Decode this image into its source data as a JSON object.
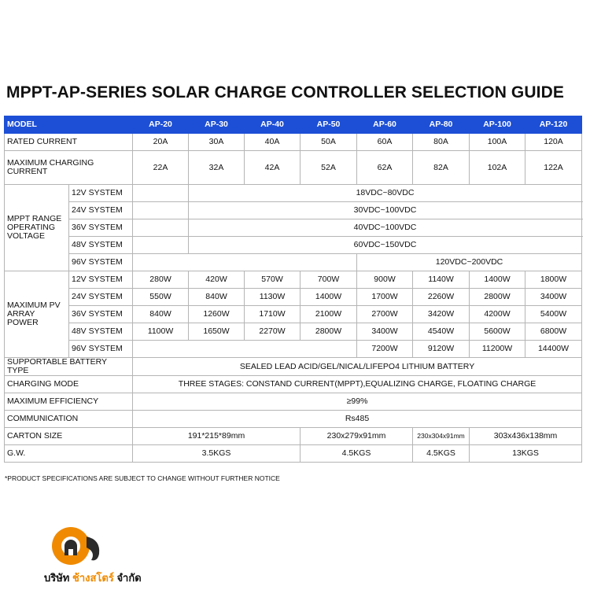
{
  "title": "MPPT-AP-SERIES SOLAR CHARGE CONTROLLER SELECTION GUIDE",
  "table": {
    "header": [
      "MODEL",
      "AP-20",
      "AP-30",
      "AP-40",
      "AP-50",
      "AP-60",
      "AP-80",
      "AP-100",
      "AP-120"
    ],
    "rated_current": [
      "RATED CURRENT",
      "20A",
      "30A",
      "40A",
      "50A",
      "60A",
      "80A",
      "100A",
      "120A"
    ],
    "max_charging_current": [
      "MAXIMUM CHARGING CURRENT",
      "22A",
      "32A",
      "42A",
      "52A",
      "62A",
      "82A",
      "102A",
      "122A"
    ],
    "mppt": {
      "label": "MPPT RANGE OPERATING VOLTAGE",
      "rows": [
        [
          "12V SYSTEM",
          "18VDC~80VDC"
        ],
        [
          "24V SYSTEM",
          "30VDC~100VDC"
        ],
        [
          "36V SYSTEM",
          "40VDC~100VDC"
        ],
        [
          "48V SYSTEM",
          "60VDC~150VDC"
        ],
        [
          "96V SYSTEM",
          "120VDC~200VDC"
        ]
      ]
    },
    "pv": {
      "label": "MAXIMUM PV ARRAY POWER",
      "rows": [
        [
          "12V SYSTEM",
          "280W",
          "420W",
          "570W",
          "700W",
          "900W",
          "1140W",
          "1400W",
          "1800W"
        ],
        [
          "24V SYSTEM",
          "550W",
          "840W",
          "1130W",
          "1400W",
          "1700W",
          "2260W",
          "2800W",
          "3400W"
        ],
        [
          "36V SYSTEM",
          "840W",
          "1260W",
          "1710W",
          "2100W",
          "2700W",
          "3420W",
          "4200W",
          "5400W"
        ],
        [
          "48V SYSTEM",
          "1100W",
          "1650W",
          "2270W",
          "2800W",
          "3400W",
          "4540W",
          "5600W",
          "6800W"
        ],
        [
          "96V SYSTEM",
          "7200W",
          "9120W",
          "11200W",
          "14400W"
        ]
      ]
    },
    "battery": [
      "SUPPORTABLE BATTERY TYPE",
      "SEALED LEAD ACID/GEL/NICAL/LIFEPO4 LITHIUM BATTERY"
    ],
    "charging_mode": [
      "CHARGING MODE",
      "THREE STAGES: CONSTAND CURRENT(MPPT),EQUALIZING CHARGE, FLOATING CHARGE"
    ],
    "efficiency": [
      "MAXIMUM EFFICIENCY",
      "≥99%"
    ],
    "communication": [
      "COMMUNICATION",
      "Rs485"
    ],
    "carton": [
      "CARTON SIZE",
      "191*215*89mm",
      "230x279x91mm",
      "230x304x91mm",
      "303x436x138mm"
    ],
    "gw": [
      "G.W.",
      "3.5KGS",
      "4.5KGS",
      "4.5KGS",
      "13KGS"
    ]
  },
  "footnote": "*PRODUCT SPECIFICATIONS ARE SUBJECT TO CHANGE WITHOUT FURTHER NOTICE",
  "logo": {
    "company": [
      "บริษัท",
      "ช้างสโตร์",
      "จำกัด"
    ]
  }
}
